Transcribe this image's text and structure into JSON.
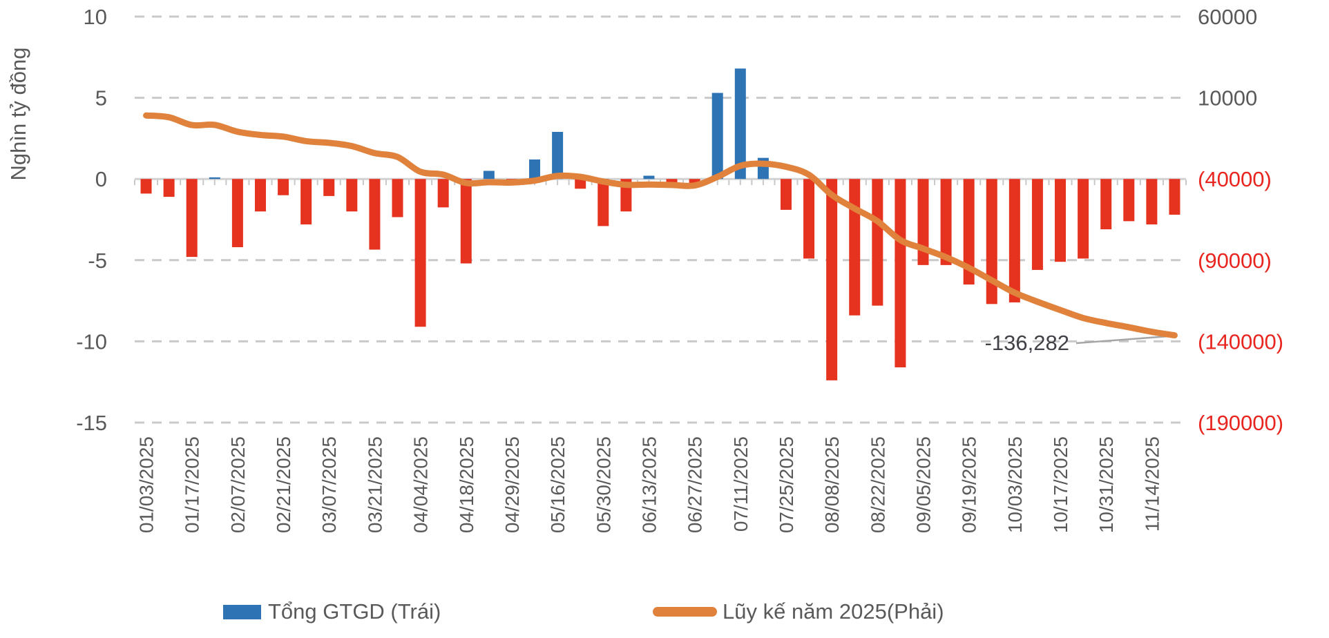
{
  "chart_data": {
    "type": "bar",
    "subtype": "combo-bar-line-dual-axis",
    "title": "",
    "ylabel": "Nghìn tỷ đồng",
    "left_axis": {
      "min": -15,
      "max": 10,
      "tick_step": 5,
      "tick_values": [
        10,
        5,
        0,
        -5,
        -10,
        -15
      ],
      "tick_labels": [
        "10",
        "5",
        "0",
        "-5",
        "-10",
        "-15"
      ],
      "text_color": "#595959",
      "grid_on": true
    },
    "right_axis": {
      "min": -190000,
      "max": 60000,
      "tick_values": [
        60000,
        10000,
        -40000,
        -90000,
        -140000,
        -190000
      ],
      "tick_labels": [
        "60000",
        "10000",
        "(40000)",
        "(90000)",
        "(140000)",
        "(190000)"
      ],
      "positive_text_color": "#595959",
      "negative_text_color": "#e8251f"
    },
    "x_tick_labels": [
      "01/03/2025",
      "01/17/2025",
      "02/07/2025",
      "02/21/2025",
      "03/07/2025",
      "03/21/2025",
      "04/04/2025",
      "04/18/2025",
      "04/29/2025",
      "05/16/2025",
      "05/30/2025",
      "06/13/2025",
      "06/27/2025",
      "07/11/2025",
      "07/25/2025",
      "08/08/2025",
      "08/22/2025",
      "09/05/2025",
      "09/19/2025",
      "10/03/2025",
      "10/17/2025",
      "10/31/2025",
      "11/14/2025"
    ],
    "x_label_every_n_bars": 2,
    "series": [
      {
        "name": "Tổng GTGD (Trái)",
        "kind": "bar",
        "axis": "left",
        "unit": "nghìn tỷ đồng",
        "color_negative": "#e6331f",
        "color_positive": "#2e74b5",
        "values": [
          -0.9,
          -1.1,
          -4.8,
          0.1,
          -4.2,
          -2.0,
          -1.0,
          -2.8,
          -1.05,
          -2.0,
          -4.35,
          -2.35,
          -9.1,
          -1.75,
          -5.2,
          0.5,
          -0.2,
          1.2,
          2.9,
          -0.6,
          -2.9,
          -2.0,
          0.2,
          -0.3,
          -0.3,
          5.3,
          6.8,
          1.3,
          -1.9,
          -4.9,
          -12.4,
          -8.4,
          -7.8,
          -11.6,
          -5.3,
          -5.3,
          -6.5,
          -7.7,
          -7.6,
          -5.6,
          -5.1,
          -4.9,
          -3.1,
          -2.6,
          -2.8,
          -2.2
        ]
      },
      {
        "name": "Lũy kế năm 2025(Phải)",
        "kind": "line",
        "axis": "right",
        "unit": "tỷ đồng",
        "color": "#e0823c",
        "smooth": true,
        "values": [
          -900,
          -2000,
          -6800,
          -6700,
          -10900,
          -12900,
          -13900,
          -16700,
          -17750,
          -19750,
          -24100,
          -26450,
          -35550,
          -37300,
          -42500,
          -42000,
          -42200,
          -41000,
          -38100,
          -38700,
          -41600,
          -43600,
          -43400,
          -43700,
          -44000,
          -38700,
          -31900,
          -30600,
          -32500,
          -37400,
          -49800,
          -58200,
          -66000,
          -77600,
          -82900,
          -88200,
          -94700,
          -102400,
          -110000,
          -115600,
          -120700,
          -125600,
          -128700,
          -131300,
          -134100,
          -136282
        ]
      }
    ],
    "annotation": {
      "text": "-136,282",
      "value": -136282,
      "leader_color": "#a6a6a6"
    },
    "legend": {
      "position": "bottom",
      "items": [
        {
          "label": "Tổng GTGD (Trái)",
          "swatch": "bar",
          "color": "#2e74b5"
        },
        {
          "label": "Lũy kế năm 2025(Phải)",
          "swatch": "line",
          "color": "#e0823c"
        }
      ]
    },
    "grid_color": "#c9c9c9",
    "axis_line_color": "#d2d2d2"
  }
}
